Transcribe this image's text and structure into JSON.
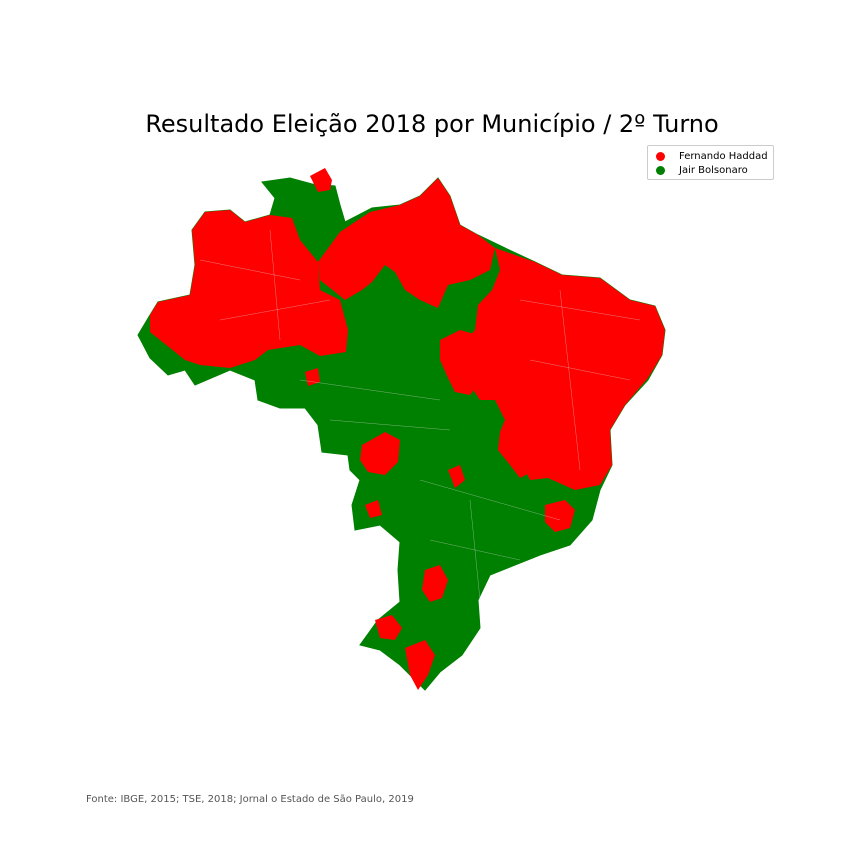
{
  "title": "Resultado Eleição 2018 por Município / 2º Turno",
  "legend": [
    {
      "label": "Fernando Haddad",
      "color": "#ff0000"
    },
    {
      "label": "Jair Bolsonaro",
      "color": "#008000"
    }
  ],
  "source": "Fonte: IBGE, 2015; TSE, 2018; Jornal o Estado de São Paulo, 2019",
  "colors": {
    "haddad": "#ff0000",
    "bolsonaro": "#008000",
    "borders": "#d9d9d9"
  }
}
